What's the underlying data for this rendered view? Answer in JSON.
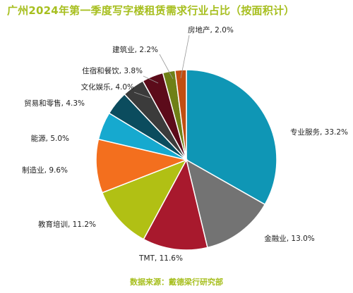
{
  "chart_data": {
    "type": "pie",
    "title": "广州2024年第一季度写字楼租赁需求行业占比（按面积计）",
    "source": "数据来源：戴德梁行研究部",
    "slices": [
      {
        "label": "专业服务",
        "value": 33.2,
        "display": "专业服务, 33.2%",
        "color": "#0f96b5"
      },
      {
        "label": "金融业",
        "value": 13.0,
        "display": "金融业, 13.0%",
        "color": "#737373"
      },
      {
        "label": "TMT",
        "value": 11.6,
        "display": "TMT, 11.6%",
        "color": "#a8192d"
      },
      {
        "label": "教育培训",
        "value": 11.2,
        "display": "教育培训, 11.2%",
        "color": "#b1c014"
      },
      {
        "label": "制造业",
        "value": 9.6,
        "display": "制造业, 9.6%",
        "color": "#f36f1e"
      },
      {
        "label": "能源",
        "value": 5.0,
        "display": "能源, 5.0%",
        "color": "#16a9cf"
      },
      {
        "label": "贸易和零售",
        "value": 4.3,
        "display": "贸易和零售, 4.3%",
        "color": "#0b4c5e"
      },
      {
        "label": "文化娱乐",
        "value": 4.0,
        "display": "文化娱乐, 4.0%",
        "color": "#3b3b3b"
      },
      {
        "label": "住宿和餐饮",
        "value": 3.8,
        "display": "住宿和餐饮, 3.8%",
        "color": "#5c0b1a"
      },
      {
        "label": "建筑业",
        "value": 2.2,
        "display": "建筑业, 2.2%",
        "color": "#6f8016"
      },
      {
        "label": "房地产",
        "value": 2.0,
        "display": "房地产, 2.0%",
        "color": "#c24e12"
      }
    ]
  }
}
